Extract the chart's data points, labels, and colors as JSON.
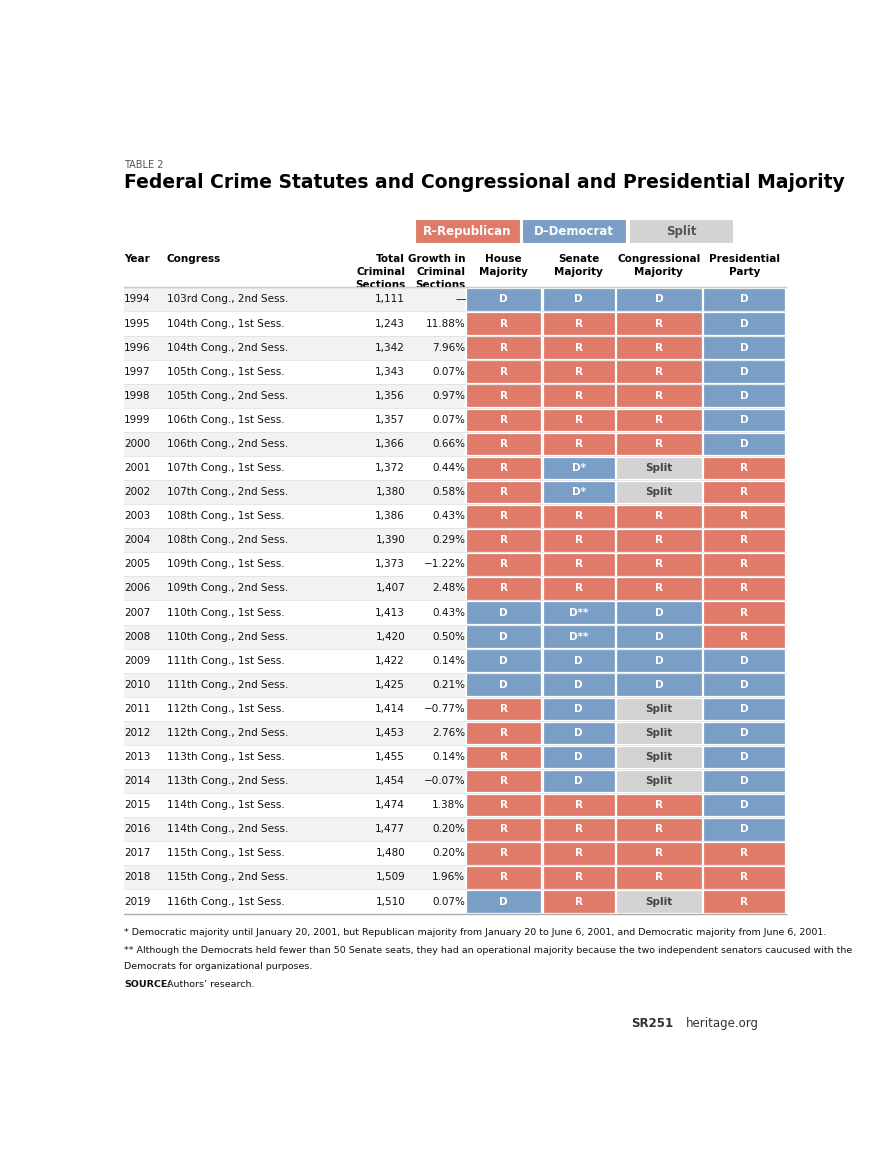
{
  "title": "Federal Crime Statutes and Congressional and Presidential Majority",
  "subtitle": "TABLE 2",
  "legend_items": [
    {
      "label": "R–Republican",
      "color": "#e07b6a"
    },
    {
      "label": "D–Democrat",
      "color": "#7b9ec7"
    },
    {
      "label": "Split",
      "color": "#d0d0d0"
    }
  ],
  "rows": [
    [
      "1994",
      "103rd Cong., 2nd Sess.",
      "1,111",
      "—",
      "D",
      "D",
      "D",
      "D"
    ],
    [
      "1995",
      "104th Cong., 1st Sess.",
      "1,243",
      "11.88%",
      "R",
      "R",
      "R",
      "D"
    ],
    [
      "1996",
      "104th Cong., 2nd Sess.",
      "1,342",
      "7.96%",
      "R",
      "R",
      "R",
      "D"
    ],
    [
      "1997",
      "105th Cong., 1st Sess.",
      "1,343",
      "0.07%",
      "R",
      "R",
      "R",
      "D"
    ],
    [
      "1998",
      "105th Cong., 2nd Sess.",
      "1,356",
      "0.97%",
      "R",
      "R",
      "R",
      "D"
    ],
    [
      "1999",
      "106th Cong., 1st Sess.",
      "1,357",
      "0.07%",
      "R",
      "R",
      "R",
      "D"
    ],
    [
      "2000",
      "106th Cong., 2nd Sess.",
      "1,366",
      "0.66%",
      "R",
      "R",
      "R",
      "D"
    ],
    [
      "2001",
      "107th Cong., 1st Sess.",
      "1,372",
      "0.44%",
      "R",
      "D*",
      "Split",
      "R"
    ],
    [
      "2002",
      "107th Cong., 2nd Sess.",
      "1,380",
      "0.58%",
      "R",
      "D*",
      "Split",
      "R"
    ],
    [
      "2003",
      "108th Cong., 1st Sess.",
      "1,386",
      "0.43%",
      "R",
      "R",
      "R",
      "R"
    ],
    [
      "2004",
      "108th Cong., 2nd Sess.",
      "1,390",
      "0.29%",
      "R",
      "R",
      "R",
      "R"
    ],
    [
      "2005",
      "109th Cong., 1st Sess.",
      "1,373",
      "−1.22%",
      "R",
      "R",
      "R",
      "R"
    ],
    [
      "2006",
      "109th Cong., 2nd Sess.",
      "1,407",
      "2.48%",
      "R",
      "R",
      "R",
      "R"
    ],
    [
      "2007",
      "110th Cong., 1st Sess.",
      "1,413",
      "0.43%",
      "D",
      "D**",
      "D",
      "R"
    ],
    [
      "2008",
      "110th Cong., 2nd Sess.",
      "1,420",
      "0.50%",
      "D",
      "D**",
      "D",
      "R"
    ],
    [
      "2009",
      "111th Cong., 1st Sess.",
      "1,422",
      "0.14%",
      "D",
      "D",
      "D",
      "D"
    ],
    [
      "2010",
      "111th Cong., 2nd Sess.",
      "1,425",
      "0.21%",
      "D",
      "D",
      "D",
      "D"
    ],
    [
      "2011",
      "112th Cong., 1st Sess.",
      "1,414",
      "−0.77%",
      "R",
      "D",
      "Split",
      "D"
    ],
    [
      "2012",
      "112th Cong., 2nd Sess.",
      "1,453",
      "2.76%",
      "R",
      "D",
      "Split",
      "D"
    ],
    [
      "2013",
      "113th Cong., 1st Sess.",
      "1,455",
      "0.14%",
      "R",
      "D",
      "Split",
      "D"
    ],
    [
      "2014",
      "113th Cong., 2nd Sess.",
      "1,454",
      "−0.07%",
      "R",
      "D",
      "Split",
      "D"
    ],
    [
      "2015",
      "114th Cong., 1st Sess.",
      "1,474",
      "1.38%",
      "R",
      "R",
      "R",
      "D"
    ],
    [
      "2016",
      "114th Cong., 2nd Sess.",
      "1,477",
      "0.20%",
      "R",
      "R",
      "R",
      "D"
    ],
    [
      "2017",
      "115th Cong., 1st Sess.",
      "1,480",
      "0.20%",
      "R",
      "R",
      "R",
      "R"
    ],
    [
      "2018",
      "115th Cong., 2nd Sess.",
      "1,509",
      "1.96%",
      "R",
      "R",
      "R",
      "R"
    ],
    [
      "2019",
      "116th Cong., 1st Sess.",
      "1,510",
      "0.07%",
      "D",
      "R",
      "Split",
      "R"
    ]
  ],
  "footnote1": "* Democratic majority until January 20, 2001, but Republican majority from January 20 to June 6, 2001, and Democratic majority from June 6, 2001.",
  "footnote2a": "** Although the Democrats held fewer than 50 Senate seats, they had an operational majority because the two independent senators caucused with the",
  "footnote2b": "Democrats for organizational purposes.",
  "footnote3_bold": "SOURCE:",
  "footnote3_normal": " Authors’ research.",
  "source_label": "SR251",
  "source_label2": "heritage.org",
  "r_color": "#e07b6a",
  "d_color": "#7b9ec7",
  "split_color": "#d3d3d3",
  "bg_color": "#ffffff",
  "row_odd_color": "#f2f2f2",
  "row_even_color": "#ffffff",
  "header_line_color": "#aaaaaa",
  "row_line_color": "#dddddd"
}
